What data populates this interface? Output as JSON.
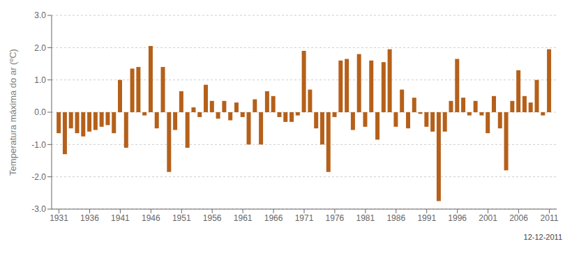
{
  "chart_data": {
    "type": "bar",
    "y_label": "Temperatura máxima do ar (ºC)",
    "annotations": [
      "12-12-2011"
    ],
    "x": [
      1931,
      1932,
      1933,
      1934,
      1935,
      1936,
      1937,
      1938,
      1939,
      1940,
      1941,
      1942,
      1943,
      1944,
      1945,
      1946,
      1947,
      1948,
      1949,
      1950,
      1951,
      1952,
      1953,
      1954,
      1955,
      1956,
      1957,
      1958,
      1959,
      1960,
      1961,
      1962,
      1963,
      1964,
      1965,
      1966,
      1967,
      1968,
      1969,
      1970,
      1971,
      1972,
      1973,
      1974,
      1975,
      1976,
      1977,
      1978,
      1979,
      1980,
      1981,
      1982,
      1983,
      1984,
      1985,
      1986,
      1987,
      1988,
      1989,
      1990,
      1991,
      1992,
      1993,
      1994,
      1995,
      1996,
      1997,
      1998,
      1999,
      2000,
      2001,
      2002,
      2003,
      2004,
      2005,
      2006,
      2007,
      2008,
      2009,
      2010,
      2011
    ],
    "values": [
      -0.65,
      -1.3,
      -0.5,
      -0.65,
      -0.75,
      -0.6,
      -0.55,
      -0.45,
      -0.4,
      -0.65,
      1.0,
      -1.1,
      1.35,
      1.4,
      -0.1,
      2.05,
      -0.5,
      1.4,
      -1.85,
      -0.55,
      0.65,
      -1.1,
      0.15,
      -0.15,
      0.85,
      0.35,
      -0.2,
      0.35,
      -0.25,
      0.3,
      -0.15,
      -1.0,
      0.4,
      -1.0,
      0.65,
      0.5,
      -0.15,
      -0.3,
      -0.3,
      -0.1,
      1.9,
      0.7,
      -0.5,
      -1.0,
      -1.85,
      -0.15,
      1.6,
      1.65,
      -0.55,
      1.8,
      -0.45,
      1.6,
      -0.85,
      1.55,
      1.95,
      -0.45,
      0.7,
      -0.5,
      0.45,
      -0.05,
      -0.45,
      -0.6,
      -2.75,
      -0.6,
      0.35,
      1.65,
      0.45,
      -0.1,
      0.35,
      -0.1,
      -0.65,
      0.5,
      -0.5,
      -1.8,
      0.35,
      1.3,
      0.5,
      0.3,
      1.0,
      -0.1,
      1.95
    ],
    "color": "#B5601A",
    "xlim": [
      1929.8,
      2012.2
    ],
    "xticks": [
      1931,
      1936,
      1941,
      1946,
      1951,
      1956,
      1961,
      1966,
      1971,
      1976,
      1981,
      1986,
      1991,
      1996,
      2001,
      2006,
      2011
    ],
    "ylim": [
      -3.0,
      3.0
    ],
    "yticks": [
      {
        "value": -3.0,
        "label": "-3.0"
      },
      {
        "value": -2.0,
        "label": "-2.0"
      },
      {
        "value": -1.0,
        "label": "-1.0"
      },
      {
        "value": 0.0,
        "label": "0.0"
      },
      {
        "value": 1.0,
        "label": "1.0"
      },
      {
        "value": 2.0,
        "label": "2.0"
      },
      {
        "value": 3.0,
        "label": "3.0"
      }
    ],
    "grid": true
  }
}
